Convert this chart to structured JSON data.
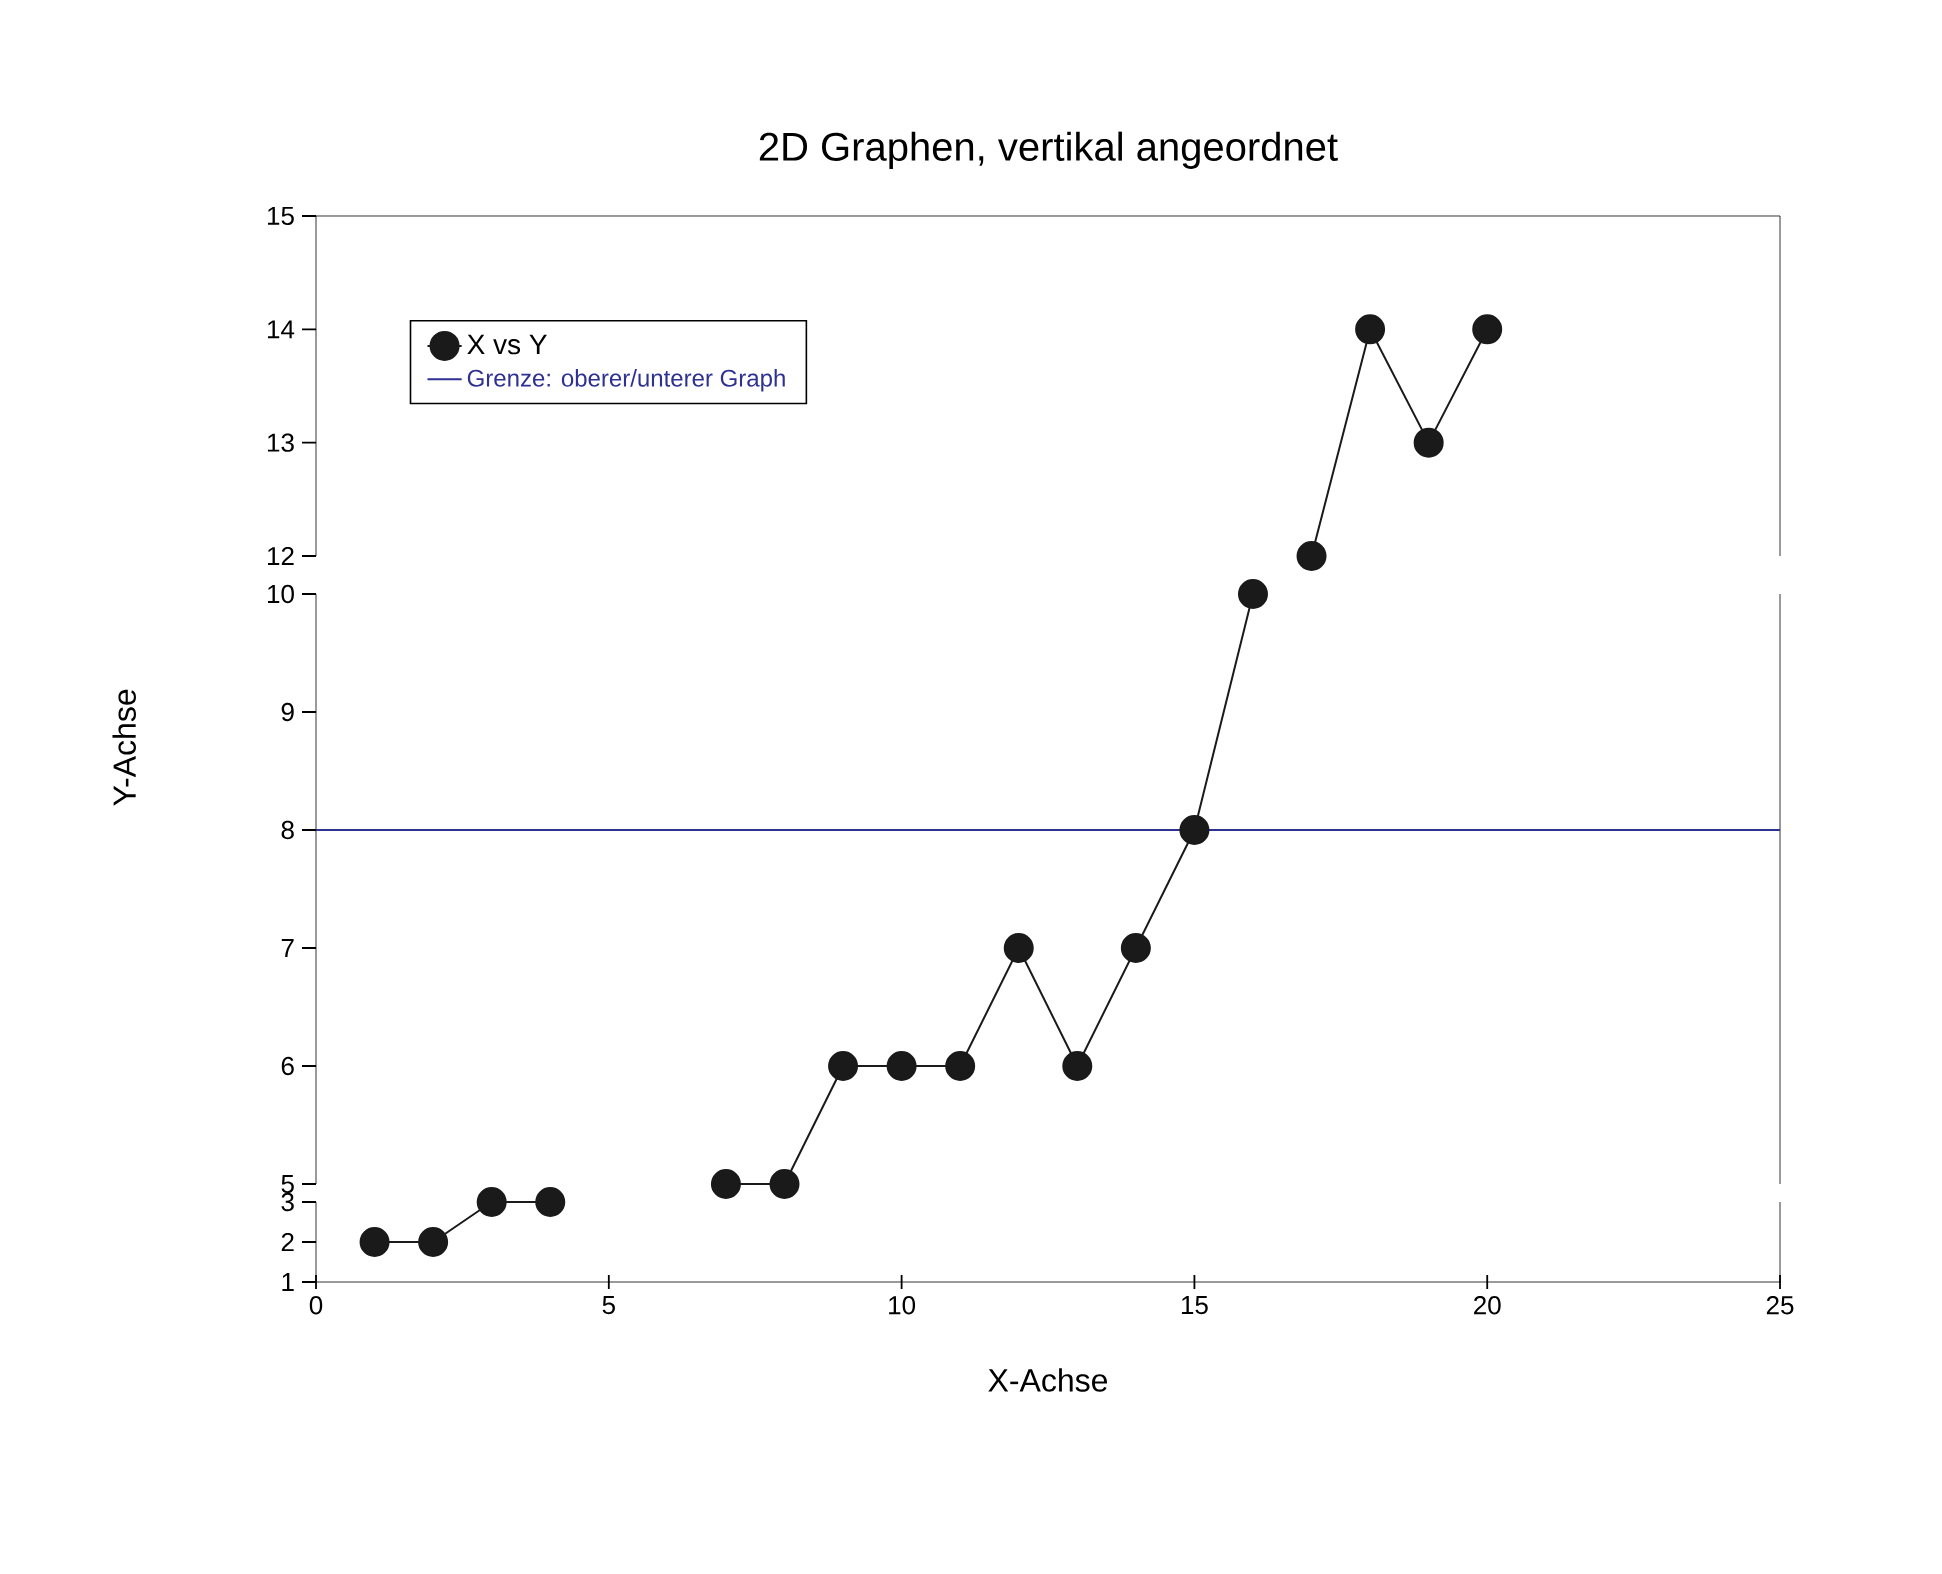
{
  "chart_data": [
    {
      "type": "line",
      "title": "2D Graphen, vertikal angeordnet",
      "x": [
        17,
        18,
        19,
        20
      ],
      "series": [
        {
          "name": "X vs Y",
          "color": "#1a1a1a",
          "values": [
            12,
            14,
            13,
            14
          ]
        }
      ],
      "xlim": [
        0,
        25
      ],
      "xticks": [
        0,
        5,
        10,
        15,
        20,
        25
      ],
      "ylim": [
        12,
        15
      ],
      "yticks": [
        12,
        13,
        14,
        15
      ],
      "tick_labels": "y",
      "legend": "top left",
      "marker": "circle",
      "line_style": "solid"
    },
    {
      "type": "line",
      "ylabel": "Y-Achse",
      "x": [
        7,
        8,
        9,
        10,
        11,
        12,
        13,
        14,
        15,
        16
      ],
      "series": [
        {
          "color": "#1a1a1a",
          "values": [
            5,
            5,
            6,
            6,
            6,
            7,
            6,
            7,
            8,
            10
          ]
        }
      ],
      "xlim": [
        0,
        25
      ],
      "xticks": [
        0,
        5,
        10,
        15,
        20,
        25
      ],
      "ylim": [
        5,
        10
      ],
      "yticks": [
        5,
        6,
        7,
        8,
        9,
        10
      ],
      "tick_labels": "y",
      "marker": "circle",
      "line_style": "solid",
      "ref_lines": [
        {
          "axis": "y",
          "value": 8,
          "label": "Grenze: oberer/unterer Graph",
          "color": "#2e3192"
        }
      ]
    },
    {
      "type": "line",
      "xlabel": "X-Achse",
      "x": [
        1,
        2,
        3,
        4
      ],
      "series": [
        {
          "color": "#1a1a1a",
          "values": [
            2,
            2,
            3,
            3
          ]
        }
      ],
      "xlim": [
        0,
        25
      ],
      "xticks": [
        0,
        5,
        10,
        15,
        20,
        25
      ],
      "ylim": [
        1,
        3
      ],
      "yticks": [
        1,
        2,
        3
      ],
      "marker": "circle",
      "line_style": "solid"
    }
  ]
}
